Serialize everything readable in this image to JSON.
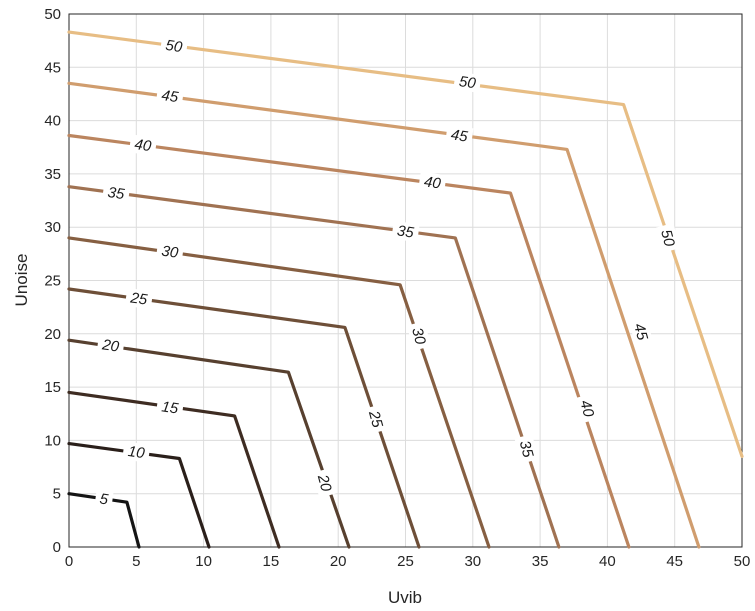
{
  "chart_data": {
    "type": "line",
    "title": "",
    "xlabel": "Uvib",
    "ylabel": "Unoise",
    "xlim": [
      0,
      50
    ],
    "ylim": [
      0,
      50
    ],
    "xticks": [
      0,
      5,
      10,
      15,
      20,
      25,
      30,
      35,
      40,
      45,
      50
    ],
    "yticks": [
      0,
      5,
      10,
      15,
      20,
      25,
      30,
      35,
      40,
      45,
      50
    ],
    "grid": true,
    "series": [
      {
        "name": "5",
        "color": "#141414",
        "points": [
          [
            0,
            5
          ],
          [
            4.3,
            4.2
          ],
          [
            5.2,
            0
          ]
        ],
        "labels": [
          {
            "x": 2.6,
            "y": 4.5,
            "angle": 8
          }
        ]
      },
      {
        "name": "10",
        "color": "#2a1f1a",
        "points": [
          [
            0,
            9.7
          ],
          [
            8.2,
            8.3
          ],
          [
            10.4,
            0
          ]
        ],
        "labels": [
          {
            "x": 5.0,
            "y": 8.9,
            "angle": 8
          }
        ]
      },
      {
        "name": "15",
        "color": "#3e2c22",
        "points": [
          [
            0,
            14.5
          ],
          [
            12.3,
            12.3
          ],
          [
            15.6,
            0
          ]
        ],
        "labels": [
          {
            "x": 7.5,
            "y": 13.1,
            "angle": 8
          }
        ]
      },
      {
        "name": "20",
        "color": "#57402f",
        "points": [
          [
            0,
            19.4
          ],
          [
            16.3,
            16.4
          ],
          [
            20.8,
            0
          ]
        ],
        "labels": [
          {
            "x": 3.1,
            "y": 18.9,
            "angle": 8
          },
          {
            "x": 19.0,
            "y": 6.0,
            "angle": 75
          }
        ]
      },
      {
        "name": "25",
        "color": "#6e4f38",
        "points": [
          [
            0,
            24.2
          ],
          [
            20.5,
            20.6
          ],
          [
            26.0,
            0
          ]
        ],
        "labels": [
          {
            "x": 5.2,
            "y": 23.3,
            "angle": 8
          },
          {
            "x": 22.8,
            "y": 12.0,
            "angle": 75
          }
        ]
      },
      {
        "name": "30",
        "color": "#865f42",
        "points": [
          [
            0,
            29.0
          ],
          [
            24.6,
            24.6
          ],
          [
            31.2,
            0
          ]
        ],
        "labels": [
          {
            "x": 7.5,
            "y": 27.7,
            "angle": 8
          },
          {
            "x": 26.0,
            "y": 19.8,
            "angle": 75
          }
        ]
      },
      {
        "name": "35",
        "color": "#a07252",
        "points": [
          [
            0,
            33.8
          ],
          [
            28.7,
            29.0
          ],
          [
            36.4,
            0
          ]
        ],
        "labels": [
          {
            "x": 3.5,
            "y": 33.2,
            "angle": 8
          },
          {
            "x": 25.0,
            "y": 29.6,
            "angle": 8
          },
          {
            "x": 34.0,
            "y": 9.2,
            "angle": 75
          }
        ]
      },
      {
        "name": "40",
        "color": "#bb855f",
        "points": [
          [
            0,
            38.6
          ],
          [
            32.8,
            33.2
          ],
          [
            41.6,
            0
          ]
        ],
        "labels": [
          {
            "x": 5.5,
            "y": 37.7,
            "angle": 8
          },
          {
            "x": 27.0,
            "y": 34.2,
            "angle": 8
          },
          {
            "x": 38.5,
            "y": 13.0,
            "angle": 75
          }
        ]
      },
      {
        "name": "45",
        "color": "#d09d6e",
        "points": [
          [
            0,
            43.5
          ],
          [
            37.0,
            37.3
          ],
          [
            46.8,
            0
          ]
        ],
        "labels": [
          {
            "x": 7.5,
            "y": 42.3,
            "angle": 8
          },
          {
            "x": 29.0,
            "y": 38.6,
            "angle": 8
          },
          {
            "x": 42.5,
            "y": 20.2,
            "angle": 75
          }
        ]
      },
      {
        "name": "50",
        "color": "#e7bd84",
        "points": [
          [
            0,
            48.3
          ],
          [
            41.2,
            41.5
          ],
          [
            50,
            8.5
          ]
        ],
        "labels": [
          {
            "x": 7.8,
            "y": 47.0,
            "angle": 8
          },
          {
            "x": 29.6,
            "y": 43.6,
            "angle": 8
          },
          {
            "x": 44.5,
            "y": 29.0,
            "angle": 75
          }
        ]
      }
    ]
  }
}
